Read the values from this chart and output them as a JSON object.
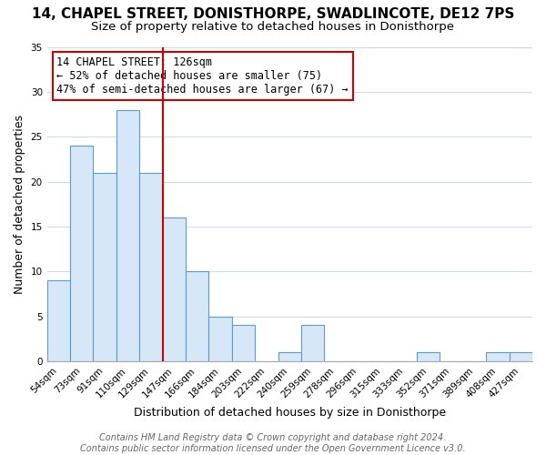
{
  "title": "14, CHAPEL STREET, DONISTHORPE, SWADLINCOTE, DE12 7PS",
  "subtitle": "Size of property relative to detached houses in Donisthorpe",
  "xlabel": "Distribution of detached houses by size in Donisthorpe",
  "ylabel": "Number of detached properties",
  "footer_line1": "Contains HM Land Registry data © Crown copyright and database right 2024.",
  "footer_line2": "Contains public sector information licensed under the Open Government Licence v3.0.",
  "bar_labels": [
    "54sqm",
    "73sqm",
    "91sqm",
    "110sqm",
    "129sqm",
    "147sqm",
    "166sqm",
    "184sqm",
    "203sqm",
    "222sqm",
    "240sqm",
    "259sqm",
    "278sqm",
    "296sqm",
    "315sqm",
    "333sqm",
    "352sqm",
    "371sqm",
    "389sqm",
    "408sqm",
    "427sqm"
  ],
  "bar_values": [
    9,
    24,
    21,
    28,
    21,
    16,
    10,
    5,
    4,
    0,
    1,
    4,
    0,
    0,
    0,
    0,
    1,
    0,
    0,
    1,
    1
  ],
  "bar_fill_color": "#d6e8f7",
  "bar_edge_color": "#5b9bd5",
  "annotation_box_text": "14 CHAPEL STREET: 126sqm\n← 52% of detached houses are smaller (75)\n47% of semi-detached houses are larger (67) →",
  "annotation_box_edge_color": "#cc0000",
  "annotation_box_fill": "#ffffff",
  "annotation_text_color": "#000000",
  "vline_color": "#cc0000",
  "vline_x_index": 4,
  "ylim": [
    0,
    35
  ],
  "yticks": [
    0,
    5,
    10,
    15,
    20,
    25,
    30,
    35
  ],
  "background_color": "#ffffff",
  "grid_color": "#c8dcea",
  "title_fontsize": 11,
  "subtitle_fontsize": 9.5,
  "axis_label_fontsize": 9,
  "tick_fontsize": 7.5,
  "annotation_fontsize": 8.5,
  "footer_fontsize": 7
}
